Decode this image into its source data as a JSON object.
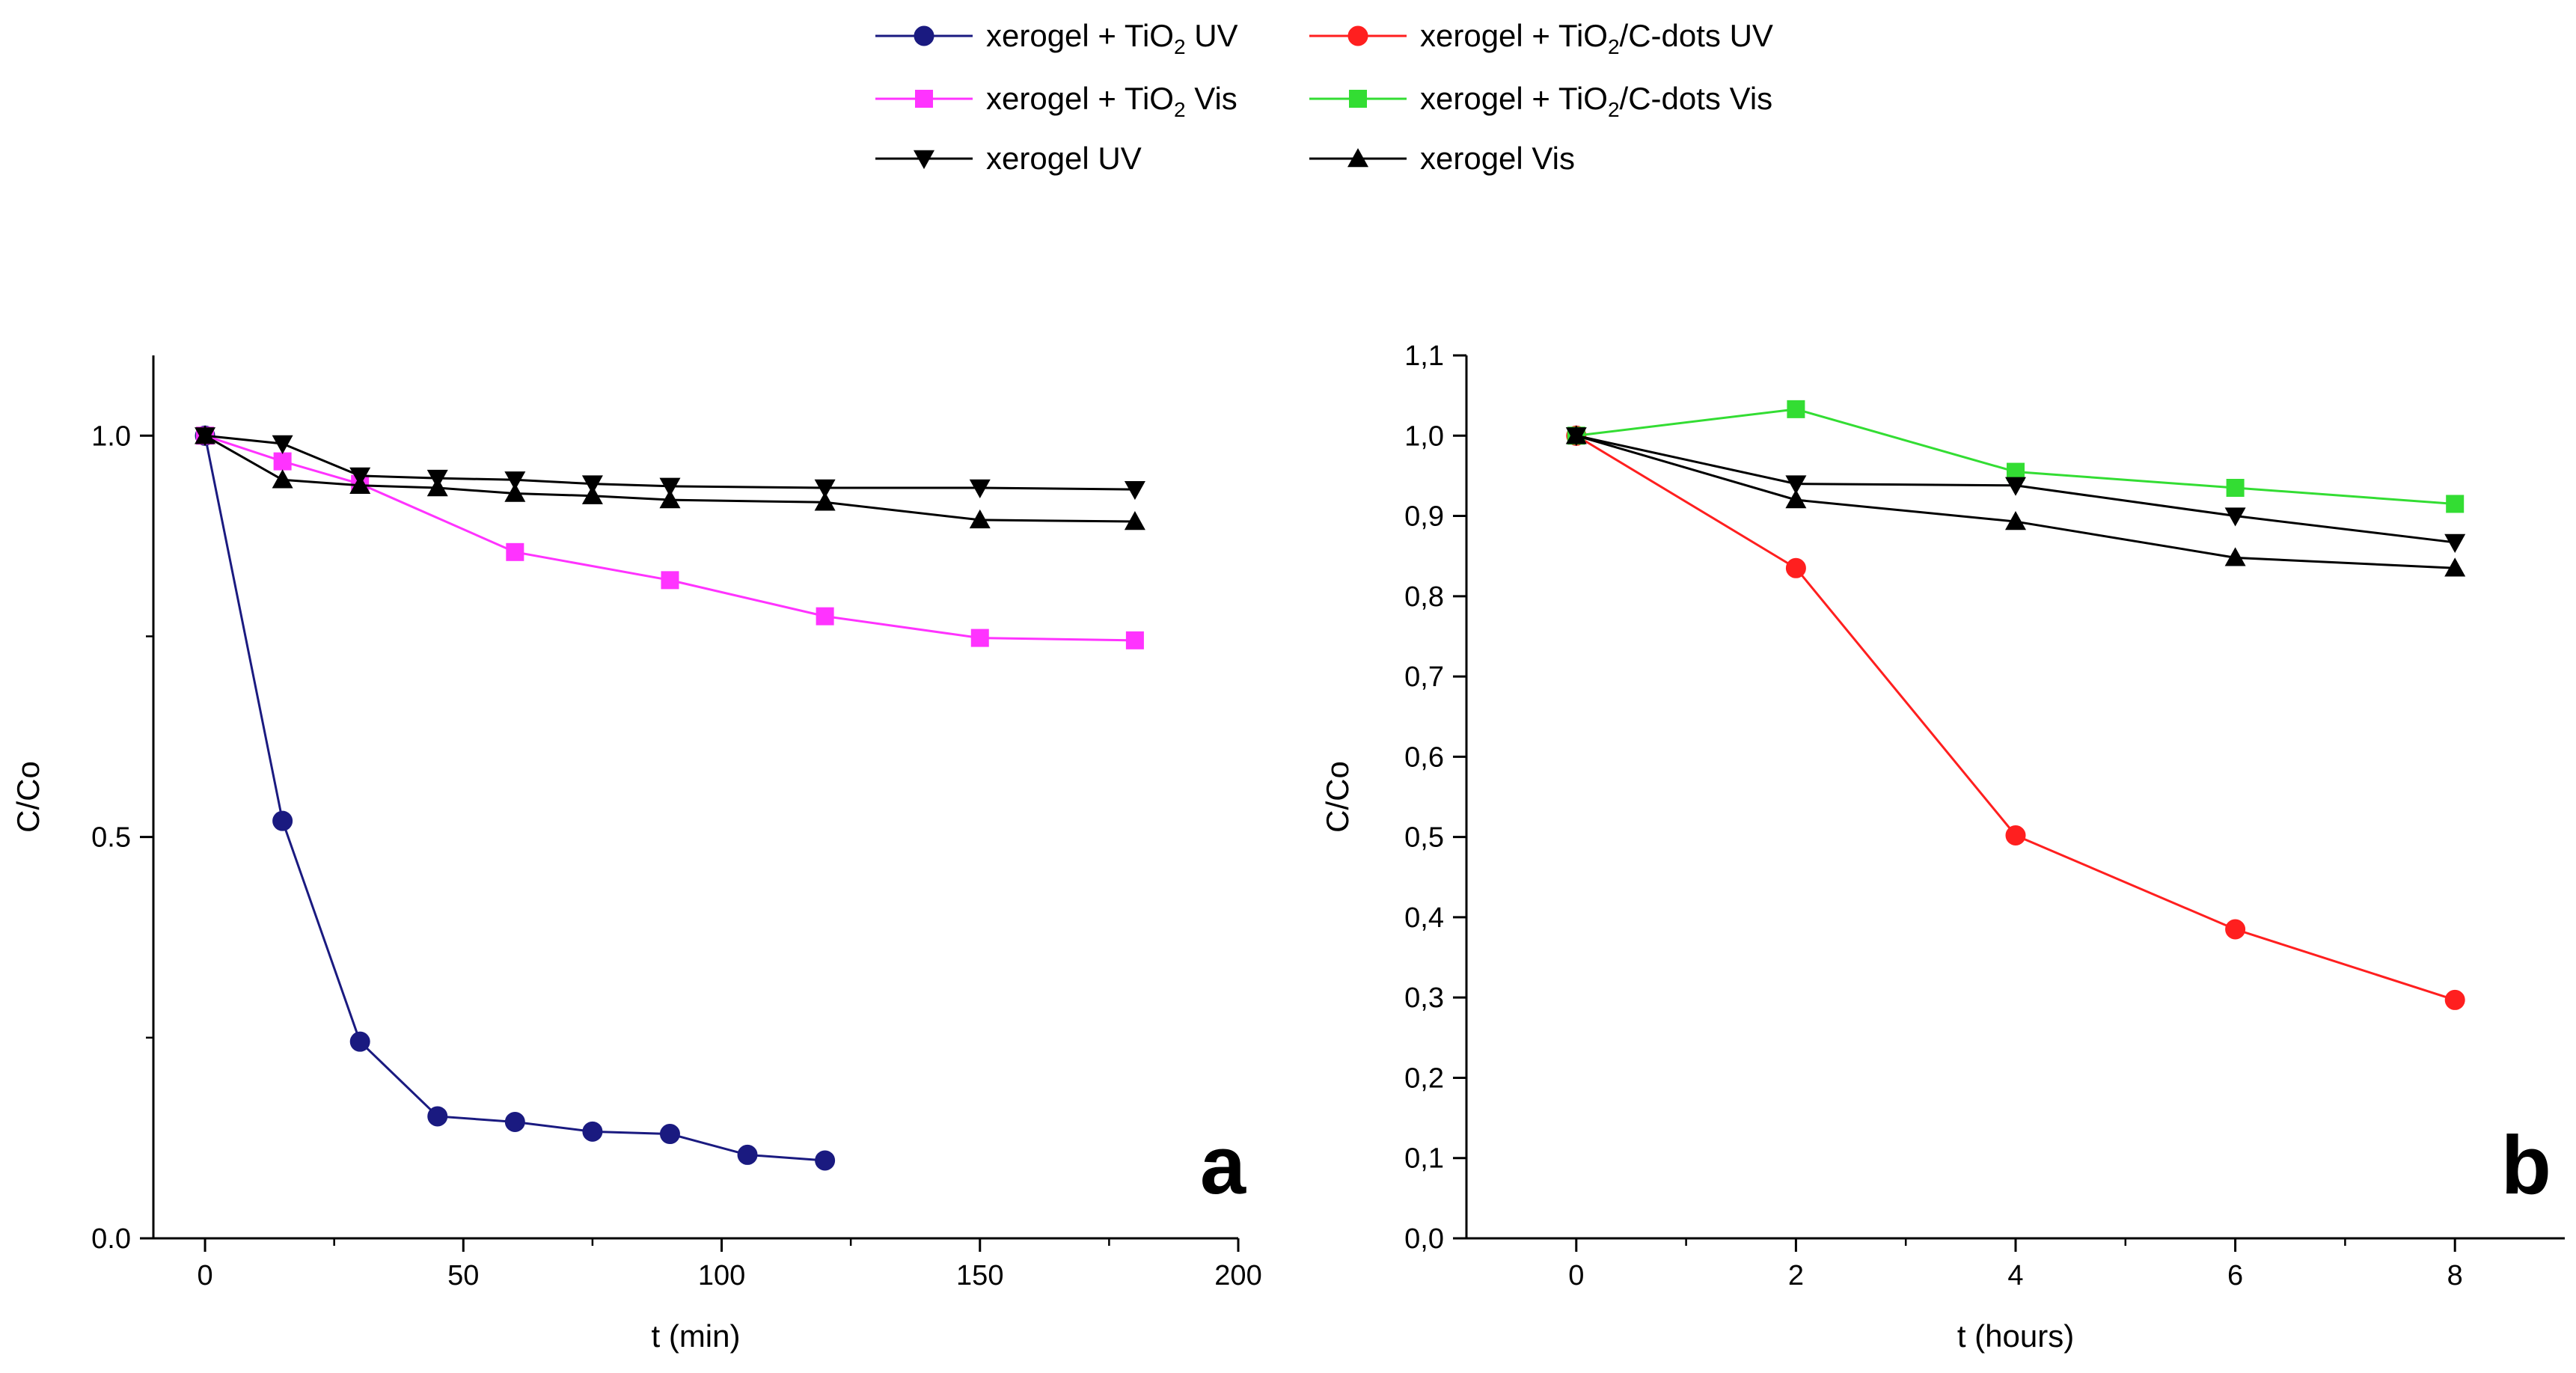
{
  "legend": {
    "entries": [
      {
        "key": "tio2_uv",
        "prefix": "xerogel + TiO",
        "sub": "2",
        "suffix": " UV",
        "color": "#1a1a80",
        "marker": "circle"
      },
      {
        "key": "cdots_uv",
        "prefix": "xerogel + TiO",
        "sub": "2",
        "suffix": "/C-dots UV",
        "color": "#ff1f1f",
        "marker": "circle"
      },
      {
        "key": "tio2_vis",
        "prefix": "xerogel + TiO",
        "sub": "2",
        "suffix": " Vis",
        "color": "#ff33ff",
        "marker": "square"
      },
      {
        "key": "cdots_vis",
        "prefix": "xerogel + TiO",
        "sub": "2",
        "suffix": "/C-dots Vis",
        "color": "#33dd33",
        "marker": "square"
      },
      {
        "key": "xerogel_uv",
        "prefix": "xerogel UV",
        "sub": "",
        "suffix": "",
        "color": "#000000",
        "marker": "triangle-down"
      },
      {
        "key": "xerogel_vis",
        "prefix": "xerogel Vis",
        "sub": "",
        "suffix": "",
        "color": "#000000",
        "marker": "triangle-up"
      }
    ]
  },
  "chart_data": [
    {
      "type": "line",
      "panel": "a",
      "xlabel": "t (min)",
      "ylabel": "C/Co",
      "xlim": [
        -10,
        200
      ],
      "ylim": [
        0,
        1.1
      ],
      "xticks": [
        0,
        50,
        100,
        150,
        200
      ],
      "xtick_labels": [
        "0",
        "50",
        "100",
        "150",
        "200"
      ],
      "yticks": [
        0,
        0.5,
        1.0
      ],
      "ytick_labels": [
        "0.0",
        "0.5",
        "1.0"
      ],
      "series": [
        {
          "key": "tio2_uv",
          "name": "xerogel + TiO2 UV",
          "color": "#1a1a80",
          "marker": "circle",
          "x": [
            0,
            15,
            30,
            45,
            60,
            75,
            90,
            105,
            120
          ],
          "y": [
            1.0,
            0.52,
            0.245,
            0.152,
            0.145,
            0.133,
            0.13,
            0.104,
            0.097
          ]
        },
        {
          "key": "tio2_vis",
          "name": "xerogel + TiO2 Vis",
          "color": "#ff33ff",
          "marker": "square",
          "x": [
            0,
            15,
            30,
            60,
            90,
            120,
            150,
            180
          ],
          "y": [
            1.0,
            0.968,
            0.94,
            0.855,
            0.82,
            0.775,
            0.748,
            0.745
          ]
        },
        {
          "key": "xerogel_uv",
          "name": "xerogel UV",
          "color": "#000000",
          "marker": "triangle-down",
          "x": [
            0,
            15,
            30,
            45,
            60,
            75,
            90,
            120,
            150,
            180
          ],
          "y": [
            1.0,
            0.99,
            0.95,
            0.947,
            0.945,
            0.94,
            0.937,
            0.935,
            0.935,
            0.933
          ]
        },
        {
          "key": "xerogel_vis",
          "name": "xerogel Vis",
          "color": "#000000",
          "marker": "triangle-up",
          "x": [
            0,
            15,
            30,
            45,
            60,
            75,
            90,
            120,
            150,
            180
          ],
          "y": [
            1.0,
            0.945,
            0.938,
            0.935,
            0.928,
            0.925,
            0.92,
            0.917,
            0.895,
            0.893
          ]
        }
      ],
      "panel_label": "a"
    },
    {
      "type": "line",
      "panel": "b",
      "xlabel": "t (hours)",
      "ylabel": "C/Co",
      "xlim": [
        -1,
        9
      ],
      "ylim": [
        0,
        1.1
      ],
      "xticks": [
        0,
        2,
        4,
        6,
        8
      ],
      "xtick_labels": [
        "0",
        "2",
        "4",
        "6",
        "8"
      ],
      "yticks": [
        0,
        0.1,
        0.2,
        0.3,
        0.4,
        0.5,
        0.6,
        0.7,
        0.8,
        0.9,
        1.0,
        1.1
      ],
      "ytick_labels": [
        "0,0",
        "0,1",
        "0,2",
        "0,3",
        "0,4",
        "0,5",
        "0,6",
        "0,7",
        "0,8",
        "0,9",
        "1,0",
        "1,1"
      ],
      "series": [
        {
          "key": "cdots_uv",
          "name": "xerogel + TiO2/C-dots UV",
          "color": "#ff1f1f",
          "marker": "circle",
          "x": [
            0,
            2,
            4,
            6,
            8
          ],
          "y": [
            1.0,
            0.835,
            0.502,
            0.385,
            0.297
          ]
        },
        {
          "key": "cdots_vis",
          "name": "xerogel + TiO2/C-dots Vis",
          "color": "#33dd33",
          "marker": "square",
          "x": [
            0,
            2,
            4,
            6,
            8
          ],
          "y": [
            1.0,
            1.033,
            0.955,
            0.935,
            0.915
          ]
        },
        {
          "key": "xerogel_uv",
          "name": "xerogel UV",
          "color": "#000000",
          "marker": "triangle-down",
          "x": [
            0,
            2,
            4,
            6,
            8
          ],
          "y": [
            1.0,
            0.94,
            0.938,
            0.9,
            0.867
          ]
        },
        {
          "key": "xerogel_vis",
          "name": "xerogel Vis",
          "color": "#000000",
          "marker": "triangle-up",
          "x": [
            0,
            2,
            4,
            6,
            8
          ],
          "y": [
            1.0,
            0.92,
            0.893,
            0.848,
            0.835
          ]
        }
      ],
      "panel_label": "b"
    }
  ]
}
